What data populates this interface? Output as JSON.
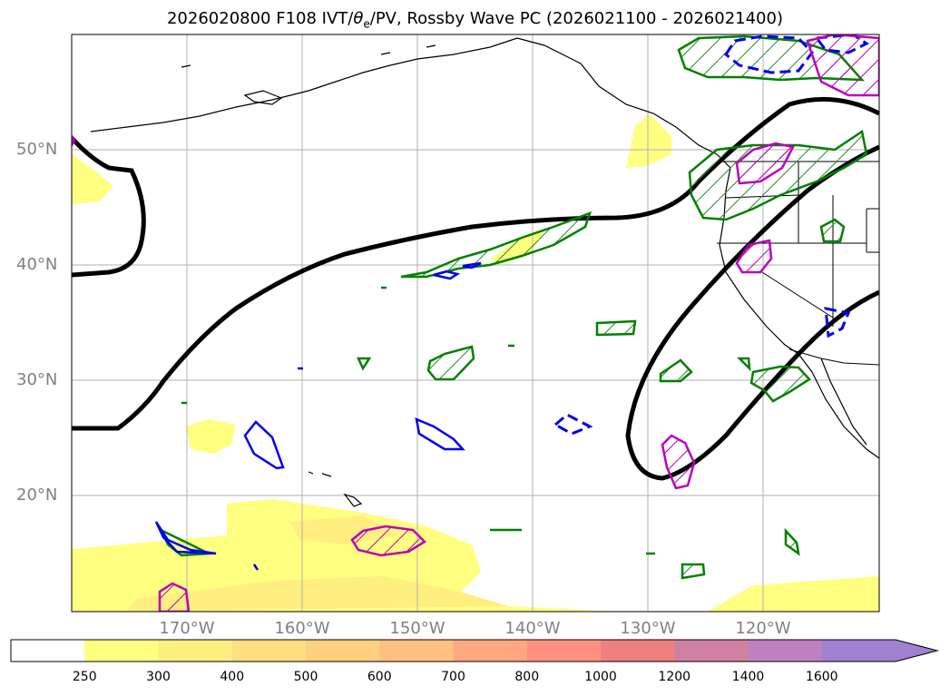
{
  "title": {
    "prefix": "2026020800 F108 IVT/",
    "theta": "θ",
    "theta_sub": "e",
    "suffix": "/PV, Rossby Wave PC (2026021100 - 2026021400)"
  },
  "map": {
    "lat_labels": [
      "50°N",
      "40°N",
      "30°N",
      "20°N"
    ],
    "lon_labels": [
      "170°W",
      "160°W",
      "150°W",
      "140°W",
      "130°W",
      "120°W"
    ],
    "colors": {
      "contour_major": "#000000",
      "contour_green": "#008000",
      "contour_blue": "#0000ee",
      "contour_magenta": "#bb00bb",
      "ivt_fill": "#ffff80",
      "coastline": "#000000",
      "grid": "#b0b0b0"
    }
  },
  "colorbar": {
    "ticks": [
      "250",
      "300",
      "400",
      "500",
      "600",
      "700",
      "800",
      "1000",
      "1200",
      "1400",
      "1600"
    ],
    "colors": [
      "#ffffff",
      "#ffff80",
      "#ffee80",
      "#ffe080",
      "#ffd080",
      "#ffc080",
      "#ffa880",
      "#ff9080",
      "#f08080",
      "#d080a0",
      "#c080c0",
      "#a080d0"
    ]
  }
}
